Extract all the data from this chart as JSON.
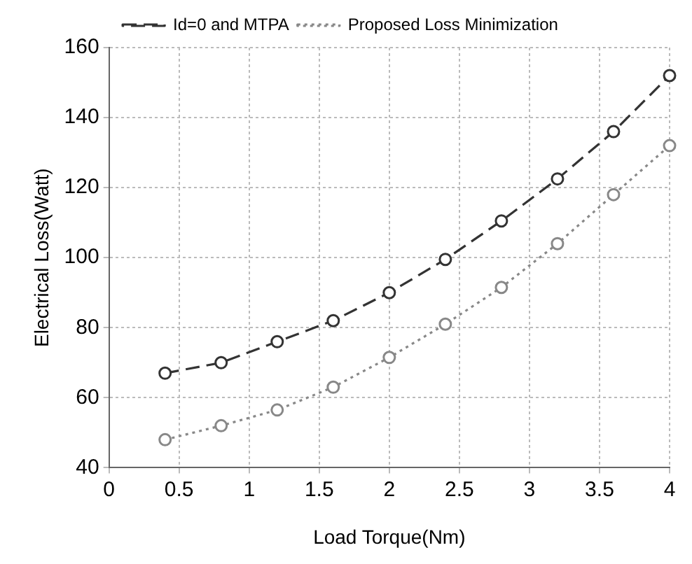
{
  "chart_data": {
    "type": "line",
    "xlabel": "Load Torque(Nm)",
    "ylabel": "Electrical Loss(Watt)",
    "x": [
      0.4,
      0.8,
      1.2,
      1.6,
      2.0,
      2.4,
      2.8,
      3.2,
      3.6,
      4.0
    ],
    "series": [
      {
        "name": "Id=0 and MTPA",
        "color": "#333333",
        "line_style": "dashed",
        "values": [
          67,
          70,
          76,
          82,
          90,
          99.5,
          110.5,
          122.5,
          136,
          152
        ]
      },
      {
        "name": "Proposed Loss Minimization",
        "color": "#888888",
        "line_style": "dotted",
        "values": [
          48,
          52,
          56.5,
          63,
          71.5,
          81,
          91.5,
          104,
          118,
          132
        ]
      }
    ],
    "xlim": [
      0,
      4
    ],
    "xticks": [
      0,
      0.5,
      1,
      1.5,
      2,
      2.5,
      3,
      3.5,
      4
    ],
    "ylim": [
      40,
      160
    ],
    "yticks": [
      40,
      60,
      80,
      100,
      120,
      140,
      160
    ],
    "grid": true,
    "legend": "top",
    "marker": "circle"
  }
}
